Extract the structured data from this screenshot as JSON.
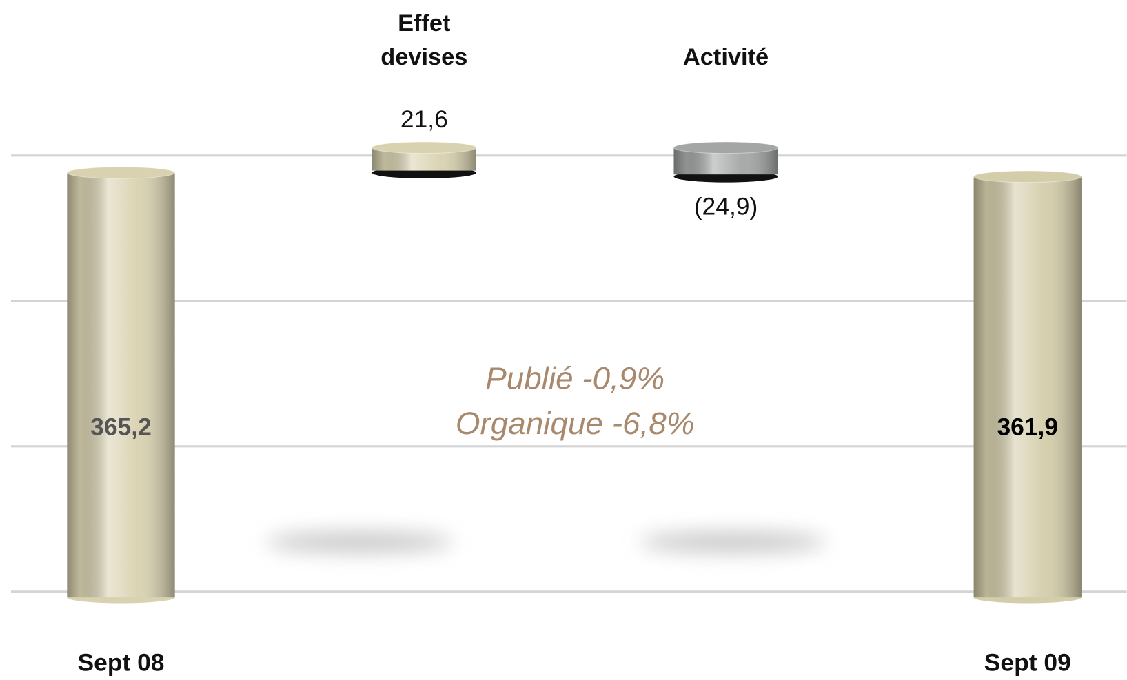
{
  "chart_data": {
    "type": "waterfall",
    "categories": [
      "Sept 08",
      "Effet devises",
      "Activité",
      "Sept 09"
    ],
    "values": [
      365.2,
      21.6,
      -24.9,
      361.9
    ],
    "value_labels": [
      "365,2",
      "21,6",
      "(24,9)",
      "361,9"
    ],
    "totals": [
      true,
      false,
      false,
      true
    ],
    "colors": [
      "#d9d2b0",
      "#d9d2b0",
      "#a4a6a6",
      "#d4cdaa"
    ],
    "ylim": [
      0,
      410
    ],
    "yticks": [
      0,
      125,
      250,
      375
    ],
    "grid": true,
    "annotations": [
      "Publié -0,9%",
      "Organique -6,8%"
    ],
    "annotation_color": "#a8896d"
  }
}
